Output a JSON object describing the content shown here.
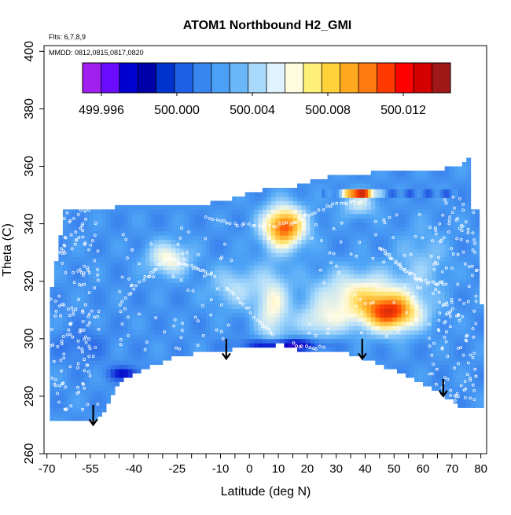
{
  "chart_data": {
    "type": "heatmap",
    "title": "ATOM1 Northbound H2_GMI",
    "annotation_flights": "Flts: 6,7,8,9",
    "annotation_dates": "MMDD: 0812,0815,0817,0820",
    "xlabel": "Latitude (deg N)",
    "ylabel": "Theta (C)",
    "xlim": [
      -71,
      82
    ],
    "ylim": [
      260,
      402
    ],
    "x_ticks": [
      -70,
      -55,
      -40,
      -25,
      -10,
      0,
      10,
      20,
      30,
      40,
      50,
      60,
      70,
      80
    ],
    "x_tick_labels": [
      "-70",
      "-55",
      "-40",
      "-25",
      "-10",
      "0",
      "10",
      "20",
      "30",
      "40",
      "50",
      "60",
      "70",
      "80"
    ],
    "x_minor_ticks": [
      -65,
      -60,
      -50,
      -45,
      -35,
      -30,
      -20,
      -15,
      -5,
      5,
      15,
      25,
      35,
      45,
      55,
      65,
      75
    ],
    "y_ticks": [
      260,
      280,
      300,
      320,
      340,
      360,
      380,
      400
    ],
    "y_tick_labels": [
      "260",
      "280",
      "300",
      "320",
      "340",
      "360",
      "380",
      "400"
    ],
    "colorbar": {
      "min": 499.995,
      "max": 500.0145,
      "tick_values": [
        499.996,
        500.0,
        500.004,
        500.008,
        500.012
      ],
      "tick_labels": [
        "499.996",
        "500.000",
        "500.004",
        "500.008",
        "500.012"
      ],
      "colors": [
        "#a020f0",
        "#6a0dff",
        "#0000d0",
        "#0000a8",
        "#0033cc",
        "#1f5fe6",
        "#3a86f0",
        "#4aa0f5",
        "#6ab8f8",
        "#a8d8fa",
        "#e0f2fd",
        "#fffce0",
        "#fff07a",
        "#ffd23a",
        "#ffa820",
        "#ff7a10",
        "#ff3a00",
        "#ff0000",
        "#d40000",
        "#a01818"
      ]
    },
    "color_stops": [
      [
        499.995,
        "#8a2be2"
      ],
      [
        499.9975,
        "#0000c8"
      ],
      [
        500.0,
        "#2f6fe8"
      ],
      [
        500.002,
        "#4fa6f6"
      ],
      [
        500.004,
        "#aedcfb"
      ],
      [
        500.006,
        "#fffbe0"
      ],
      [
        500.008,
        "#ffe066"
      ],
      [
        500.01,
        "#ffa51f"
      ],
      [
        500.012,
        "#ff3c00"
      ],
      [
        500.0145,
        "#a01818"
      ]
    ],
    "field": {
      "background": 500.0013,
      "blobs": [
        {
          "lat": 12,
          "theta": 339,
          "sx": 5,
          "sy": 5,
          "amp": 0.0105
        },
        {
          "lat": 49,
          "theta": 309,
          "sx": 7,
          "sy": 4.5,
          "amp": 0.0095
        },
        {
          "lat": 38,
          "theta": 315,
          "sx": 11,
          "sy": 6,
          "amp": 0.0052
        },
        {
          "lat": -28,
          "theta": 328,
          "sx": 5,
          "sy": 4,
          "amp": 0.0048
        },
        {
          "lat": 8,
          "theta": 311,
          "sx": 4,
          "sy": 9,
          "amp": 0.0045
        },
        {
          "lat": 25,
          "theta": 306,
          "sx": 6,
          "sy": 4,
          "amp": 0.0035
        },
        {
          "lat": -5,
          "theta": 318,
          "sx": 6,
          "sy": 5,
          "amp": 0.0028
        },
        {
          "lat": 60,
          "theta": 327,
          "sx": 6,
          "sy": 8,
          "amp": 0.0018
        },
        {
          "lat": 38,
          "theta": 347,
          "sx": 4,
          "sy": 3,
          "amp": 0.0035
        },
        {
          "lat": 12,
          "theta": 298,
          "sx": 9,
          "sy": 1.4,
          "amp": -0.0052
        },
        {
          "lat": -43,
          "theta": 288,
          "sx": 4,
          "sy": 1.6,
          "amp": -0.0035
        },
        {
          "lat": -58,
          "theta": 298,
          "sx": 6,
          "sy": 4,
          "amp": -0.0012
        }
      ]
    },
    "data_region": {
      "top": [
        [
          -69,
          312
        ],
        [
          -68,
          320
        ],
        [
          -66,
          330
        ],
        [
          -64,
          345
        ],
        [
          -50,
          345
        ],
        [
          -45,
          346
        ],
        [
          -20,
          346
        ],
        [
          -15,
          347
        ],
        [
          -5,
          349
        ],
        [
          5,
          352
        ],
        [
          15,
          353
        ],
        [
          25,
          356
        ],
        [
          35,
          357
        ],
        [
          45,
          358
        ],
        [
          55,
          359
        ],
        [
          65,
          359
        ],
        [
          74,
          360
        ],
        [
          75,
          365
        ],
        [
          76,
          363
        ],
        [
          77,
          345
        ],
        [
          78,
          344
        ],
        [
          79,
          345
        ],
        [
          80,
          340
        ],
        [
          80,
          312
        ]
      ],
      "bottom": [
        [
          -69,
          272
        ],
        [
          -52,
          272
        ],
        [
          -45,
          285
        ],
        [
          -35,
          290
        ],
        [
          -25,
          294
        ],
        [
          -10,
          296
        ],
        [
          5,
          297
        ],
        [
          11,
          298
        ],
        [
          20,
          295
        ],
        [
          30,
          296
        ],
        [
          38,
          294
        ],
        [
          45,
          291
        ],
        [
          55,
          287
        ],
        [
          65,
          282
        ],
        [
          73,
          276
        ],
        [
          80,
          276
        ]
      ],
      "stripe": {
        "theta_low": 349,
        "theta_high": 352,
        "lat_from": 25,
        "lat_to": 72,
        "peak_lat": 38
      }
    },
    "sample_paths": [
      {
        "lat_from": -69,
        "lat_to": -52,
        "theta_from": 275,
        "theta_to": 345,
        "n": 170,
        "mode": "cloud"
      },
      {
        "lat_from": 62,
        "lat_to": 79,
        "theta_from": 278,
        "theta_to": 350,
        "n": 160,
        "mode": "cloud"
      },
      {
        "lat_from": -45,
        "lat_to": -5,
        "theta_from": 295,
        "theta_to": 340,
        "n": 70,
        "mode": "cloud"
      },
      {
        "lat_from": 20,
        "lat_to": 60,
        "theta_from": 300,
        "theta_to": 345,
        "n": 60,
        "mode": "cloud"
      },
      {
        "path": [
          [
            -45,
            312
          ],
          [
            -35,
            322
          ],
          [
            -28,
            328
          ],
          [
            -20,
            325
          ],
          [
            -12,
            322
          ]
        ],
        "n": 40,
        "mode": "path"
      },
      {
        "path": [
          [
            -15,
            342
          ],
          [
            -5,
            340
          ],
          [
            5,
            339
          ],
          [
            15,
            340
          ],
          [
            20,
            343
          ],
          [
            30,
            347
          ],
          [
            40,
            348
          ]
        ],
        "n": 50,
        "mode": "path"
      },
      {
        "path": [
          [
            45,
            332
          ],
          [
            50,
            327
          ],
          [
            55,
            323
          ],
          [
            60,
            320
          ],
          [
            68,
            319
          ]
        ],
        "n": 40,
        "mode": "path"
      },
      {
        "path": [
          [
            -8,
            318
          ],
          [
            -2,
            312
          ],
          [
            4,
            305
          ],
          [
            8,
            302
          ]
        ],
        "n": 20,
        "mode": "path"
      },
      {
        "path": [
          [
            15,
            298
          ],
          [
            20,
            297
          ],
          [
            26,
            297
          ]
        ],
        "n": 10,
        "mode": "path"
      }
    ],
    "arrows": [
      {
        "lat": -54,
        "theta_start": 277,
        "theta_end": 270
      },
      {
        "lat": -8,
        "theta_start": 300,
        "theta_end": 293
      },
      {
        "lat": 39,
        "theta_start": 300,
        "theta_end": 293
      },
      {
        "lat": 67,
        "theta_start": 286,
        "theta_end": 280
      }
    ]
  }
}
